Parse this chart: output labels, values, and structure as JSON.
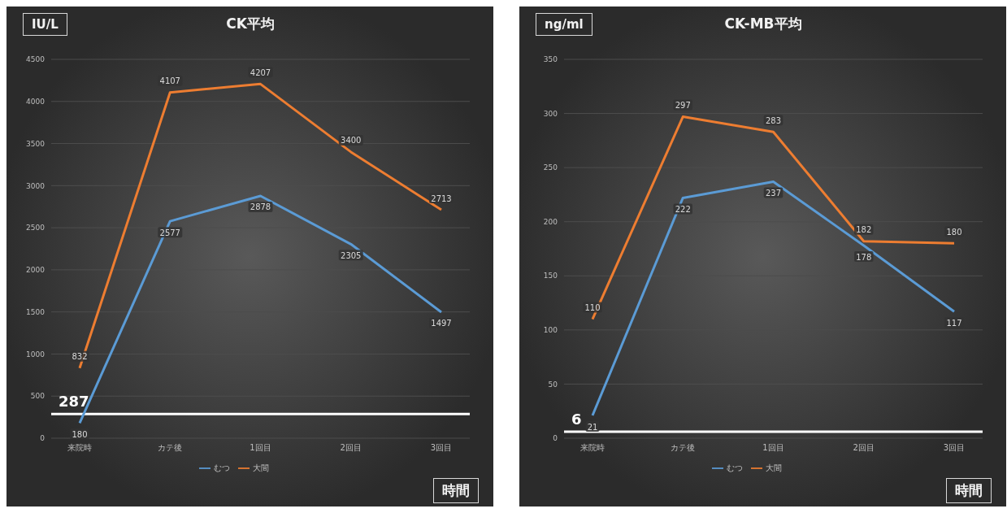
{
  "chart_data": [
    {
      "type": "line",
      "title": "CK平均",
      "ylabel": "IU/L",
      "xlabel": "時間",
      "categories": [
        "来院時",
        "カテ後",
        "1回目",
        "2回目",
        "3回目"
      ],
      "series": [
        {
          "name": "むつ",
          "color": "#5b9bd5",
          "values": [
            180,
            2577,
            2878,
            2305,
            1497
          ]
        },
        {
          "name": "大間",
          "color": "#ed7d31",
          "values": [
            832,
            4107,
            4207,
            3400,
            2713
          ]
        }
      ],
      "ylim": [
        0,
        4500
      ],
      "yticks": [
        0,
        500,
        1000,
        1500,
        2000,
        2500,
        3000,
        3500,
        4000,
        4500
      ],
      "grid": "y",
      "legend": "bottom",
      "data_labels": true,
      "marker": "none",
      "line_style": "solid",
      "ref_lines": [
        {
          "axis": "y",
          "value": 287,
          "label": "287",
          "color": "#ffffff"
        }
      ]
    },
    {
      "type": "line",
      "title": "CK-MB平均",
      "ylabel": "ng/ml",
      "xlabel": "時間",
      "categories": [
        "来院時",
        "カテ後",
        "1回目",
        "2回目",
        "3回目"
      ],
      "series": [
        {
          "name": "むつ",
          "color": "#5b9bd5",
          "values": [
            21,
            222,
            237,
            178,
            117
          ]
        },
        {
          "name": "大間",
          "color": "#ed7d31",
          "values": [
            110,
            297,
            283,
            182,
            180
          ]
        }
      ],
      "ylim": [
        0,
        350
      ],
      "yticks": [
        0,
        50,
        100,
        150,
        200,
        250,
        300,
        350
      ],
      "grid": "y",
      "legend": "bottom",
      "data_labels": true,
      "marker": "none",
      "line_style": "solid",
      "ref_lines": [
        {
          "axis": "y",
          "value": 6,
          "label": "6",
          "color": "#ffffff"
        }
      ]
    }
  ]
}
